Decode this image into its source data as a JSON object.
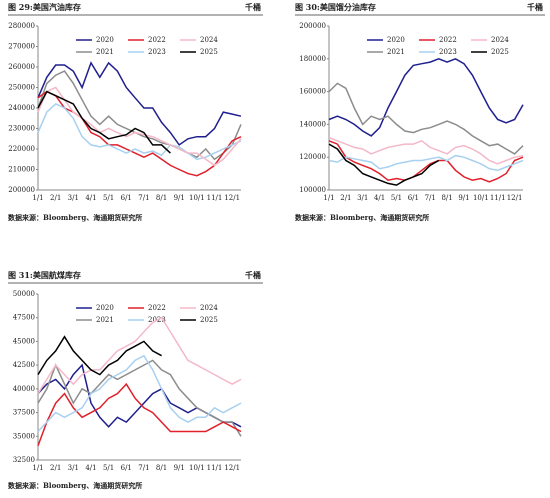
{
  "chart_data": [
    {
      "type": "line",
      "title": "图 29:美国汽油库存",
      "unit": "千桶",
      "source": "数据来源：Bloomberg、海通期货研究所",
      "categories": [
        "1/1",
        null,
        "2/1",
        null,
        "3/1",
        null,
        "4/1",
        null,
        "5/1",
        null,
        "6/1",
        null,
        "7/1",
        null,
        "8/1",
        null,
        "9/1",
        null,
        "10/1",
        null,
        "11/1",
        null,
        "12/1",
        null
      ],
      "ylim": [
        200000,
        280000
      ],
      "yticks": [
        200000,
        210000,
        220000,
        230000,
        240000,
        250000,
        260000,
        270000,
        280000
      ],
      "series": [
        {
          "name": "2020",
          "color": "#1f1f8f",
          "values": [
            245000,
            255000,
            261000,
            261000,
            258000,
            250000,
            262000,
            255000,
            262000,
            258000,
            250000,
            245000,
            240000,
            240000,
            233000,
            228000,
            222000,
            225000,
            226000,
            226000,
            230000,
            238000,
            237000,
            236000
          ]
        },
        {
          "name": "2021",
          "color": "#8c8c8c",
          "values": [
            240000,
            252000,
            256000,
            258000,
            252000,
            244000,
            236000,
            232000,
            236000,
            232000,
            230000,
            228000,
            226000,
            225000,
            223000,
            222000,
            220000,
            218000,
            216000,
            220000,
            215000,
            218000,
            222000,
            232000
          ]
        },
        {
          "name": "2022",
          "color": "#e0202a",
          "values": [
            245000,
            248000,
            246000,
            240000,
            238000,
            235000,
            228000,
            226000,
            222000,
            222000,
            220000,
            218000,
            216000,
            218000,
            215000,
            212000,
            210000,
            208000,
            207000,
            209000,
            212000,
            218000,
            224000,
            226000
          ]
        },
        {
          "name": "2023",
          "color": "#a8d0f0",
          "values": [
            228000,
            238000,
            242000,
            240000,
            235000,
            226000,
            222000,
            221000,
            222000,
            220000,
            218000,
            220000,
            218000,
            219000,
            217000,
            222000,
            221000,
            218000,
            215000,
            216000,
            218000,
            220000,
            222000,
            224000
          ]
        },
        {
          "name": "2024",
          "color": "#f4b8c8",
          "values": [
            238000,
            248000,
            250000,
            244000,
            238000,
            235000,
            232000,
            228000,
            230000,
            228000,
            226000,
            228000,
            227000,
            226000,
            224000,
            222000,
            220000,
            218000,
            218000,
            215000,
            212000,
            215000,
            220000,
            225000
          ]
        },
        {
          "name": "2025",
          "color": "#000000",
          "values": [
            240000,
            248000,
            246000,
            244000,
            242000,
            235000,
            230000,
            228000,
            225000,
            226000,
            227000,
            230000,
            228000,
            222000,
            222000,
            218000,
            null,
            null,
            null,
            null,
            null,
            null,
            null,
            null
          ]
        }
      ]
    },
    {
      "type": "line",
      "title": "图 30:美国馏分油库存",
      "unit": "千桶",
      "source": "数据来源：Bloomberg、海通期货研究所",
      "categories": [
        "1/1",
        null,
        "2/1",
        null,
        "3/1",
        null,
        "4/1",
        null,
        "5/1",
        null,
        "6/1",
        null,
        "7/1",
        null,
        "8/1",
        null,
        "9/1",
        null,
        "10/1",
        null,
        "11/1",
        null,
        "12/1",
        null
      ],
      "ylim": [
        100000,
        200000
      ],
      "yticks": [
        100000,
        120000,
        140000,
        160000,
        180000,
        200000
      ],
      "series": [
        {
          "name": "2020",
          "color": "#1f1f8f",
          "values": [
            143000,
            145000,
            143000,
            140000,
            136000,
            133000,
            138000,
            150000,
            160000,
            170000,
            176000,
            177000,
            178000,
            180000,
            178000,
            180000,
            177000,
            170000,
            160000,
            150000,
            143000,
            141000,
            143000,
            152000
          ]
        },
        {
          "name": "2021",
          "color": "#8c8c8c",
          "values": [
            160000,
            165000,
            162000,
            150000,
            140000,
            145000,
            143000,
            145000,
            140000,
            136000,
            135000,
            137000,
            138000,
            140000,
            142000,
            140000,
            137000,
            133000,
            130000,
            127000,
            128000,
            125000,
            122000,
            127000
          ]
        },
        {
          "name": "2022",
          "color": "#e0202a",
          "values": [
            130000,
            128000,
            120000,
            117000,
            115000,
            113000,
            110000,
            106000,
            107000,
            106000,
            108000,
            112000,
            116000,
            118000,
            118000,
            112000,
            108000,
            106000,
            107000,
            105000,
            107000,
            110000,
            118000,
            120000
          ]
        },
        {
          "name": "2023",
          "color": "#a8d0f0",
          "values": [
            118000,
            117000,
            120000,
            119000,
            118000,
            117000,
            113000,
            114000,
            116000,
            117000,
            118000,
            118000,
            119000,
            120000,
            118000,
            121000,
            120000,
            118000,
            116000,
            113000,
            112000,
            114000,
            116000,
            118000
          ]
        },
        {
          "name": "2024",
          "color": "#f4b8c8",
          "values": [
            132000,
            130000,
            128000,
            126000,
            125000,
            122000,
            124000,
            126000,
            127000,
            128000,
            128000,
            130000,
            126000,
            124000,
            122000,
            126000,
            127000,
            125000,
            122000,
            118000,
            116000,
            118000,
            120000,
            121000
          ]
        },
        {
          "name": "2025",
          "color": "#000000",
          "values": [
            128000,
            125000,
            118000,
            115000,
            110000,
            108000,
            106000,
            104000,
            103000,
            106000,
            108000,
            110000,
            115000,
            118000,
            null,
            null,
            null,
            null,
            null,
            null,
            null,
            null,
            null,
            null
          ]
        }
      ]
    },
    {
      "type": "line",
      "title": "图 31:美国航煤库存",
      "unit": "千桶",
      "source": "数据来源：Bloomberg、海通期货研究所",
      "categories": [
        "1/1",
        null,
        "2/1",
        null,
        "3/1",
        null,
        "4/1",
        null,
        "5/1",
        null,
        "6/1",
        null,
        "7/1",
        null,
        "8/1",
        null,
        "9/1",
        null,
        "10/1",
        null,
        "11/1",
        null,
        "12/1",
        null
      ],
      "ylim": [
        32500,
        50000
      ],
      "yticks": [
        32500,
        35000,
        37500,
        40000,
        42500,
        45000,
        47500,
        50000
      ],
      "series": [
        {
          "name": "2020",
          "color": "#1f1f8f",
          "values": [
            39500,
            40500,
            41000,
            40000,
            41500,
            42500,
            38500,
            37000,
            36000,
            37000,
            36500,
            37500,
            38500,
            39500,
            40000,
            38500,
            38000,
            37500,
            38000,
            37500,
            37000,
            36500,
            36500,
            36000
          ]
        },
        {
          "name": "2021",
          "color": "#8c8c8c",
          "values": [
            38500,
            40000,
            42500,
            40500,
            38500,
            40000,
            39500,
            40500,
            41500,
            41000,
            41500,
            42000,
            42500,
            43000,
            42000,
            41500,
            40000,
            39000,
            38000,
            37500,
            37000,
            36500,
            36500,
            35000
          ]
        },
        {
          "name": "2022",
          "color": "#e0202a",
          "values": [
            34000,
            36500,
            38500,
            39500,
            38000,
            37000,
            37500,
            38000,
            39000,
            39500,
            40500,
            39000,
            38000,
            37500,
            36500,
            35500,
            35500,
            35500,
            35500,
            35500,
            36000,
            36500,
            36000,
            35500
          ]
        },
        {
          "name": "2023",
          "color": "#a8d0f0",
          "values": [
            35500,
            36500,
            37500,
            37000,
            37500,
            38000,
            39500,
            40000,
            41000,
            41500,
            42000,
            43000,
            43500,
            42000,
            40000,
            38000,
            37000,
            36500,
            37000,
            37000,
            38000,
            37500,
            38000,
            38500
          ]
        },
        {
          "name": "2024",
          "color": "#f4b8c8",
          "values": [
            39500,
            41000,
            42500,
            41500,
            40500,
            41500,
            42000,
            42000,
            43000,
            44000,
            44500,
            45000,
            46000,
            47000,
            47500,
            46000,
            44500,
            43000,
            42500,
            42000,
            41500,
            41000,
            40500,
            41000
          ]
        },
        {
          "name": "2025",
          "color": "#000000",
          "values": [
            41500,
            43000,
            44000,
            45500,
            44000,
            43000,
            42000,
            41500,
            42500,
            43000,
            44000,
            44500,
            45000,
            44000,
            43500,
            null,
            null,
            null,
            null,
            null,
            null,
            null,
            null,
            null
          ]
        }
      ]
    }
  ]
}
